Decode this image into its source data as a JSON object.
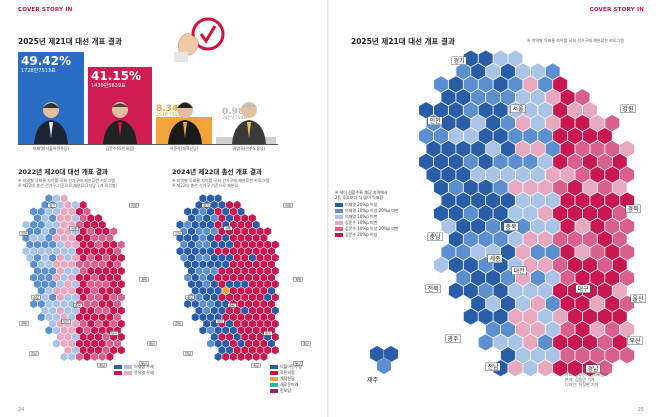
{
  "header": {
    "left": "COVER STORY IN",
    "right": "COVER STORY IN"
  },
  "result2025": {
    "title": "2025년 제21대 대선 개표 결과",
    "candidates": [
      {
        "pct": "49.42%",
        "votes": "1728만7513표",
        "caption": "이재명(더불어민주당)",
        "color": "#2a6cc4",
        "share": 49.42
      },
      {
        "pct": "41.15%",
        "votes": "1439만5639표",
        "caption": "김문수(국민의힘)",
        "color": "#cf1d52",
        "share": 41.15
      },
      {
        "pct": "8.34%",
        "votes": "291만7523표",
        "caption": "이준석(개혁신당)",
        "color": "#f2a33a",
        "share": 8.34
      },
      {
        "pct": "0.98%",
        "votes": "34만4150표",
        "caption": "권영국(민주노동당)",
        "color": "#c8c8c8",
        "share": 0.98
      }
    ]
  },
  "result2022": {
    "title": "2022년 제20대 대선 개표 결과",
    "notes": [
      "※ 지역별 득표율 차이를 국회 선거구에 재분류한 카토그램",
      "※ 제22대 총선 선거구 기준으로 재분류(1석당 1개 육각형)"
    ],
    "legend": [
      "이재명 우세",
      "윤석열 우세"
    ]
  },
  "result2024": {
    "title": "2024년 제22대 총선 개표 결과",
    "notes": [
      "※ 지역별 득표율 차이를 국회 선거구에 재분류한 카토그램",
      "※ 제22대 총선 선거구 기준으로 재분류"
    ],
    "legend": [
      "더불어민주당",
      "국민의힘",
      "개혁신당",
      "새로운미래",
      "진보당"
    ]
  },
  "map2025": {
    "title": "2025년 제21대 대선 개표 결과",
    "note": "※ 지역별 득표율 차이를 국회 선거구에 재분류한 카토그램",
    "legend_title": [
      "※ 색이 진할수록 해당 지역에서",
      "2등 후보보다 더 많이 득표함"
    ],
    "legend": [
      "이재명 20%p 이상",
      "이재명 10%p 이상 20%p 미만",
      "이재명 10%p 미만",
      "김문수 10%p 미만",
      "김문수 10%p 이상 20%p 미만",
      "김문수 20%p 이상"
    ],
    "source": [
      "자료: 중앙선거관리위원회",
      "분석: 김동민 기자",
      "디자인: 이정현 기자"
    ]
  },
  "regions": {
    "seoul": "서울",
    "gyeonggi": "경기",
    "incheon": "인천",
    "gangwon": "강원",
    "chungbuk": "충북",
    "chungnam": "충남",
    "sejong": "세종",
    "daejeon": "대전",
    "jeonbuk": "전북",
    "jeonnam": "전남",
    "gwangju": "광주",
    "gyeongbuk": "경북",
    "gyeongnam": "경남",
    "daegu": "대구",
    "busan": "부산",
    "ulsan": "울산",
    "jeju": "제주"
  },
  "pageno": {
    "left": "24",
    "right": "25"
  },
  "colors": {
    "blue_dark": "#2a5da8",
    "blue_mid": "#5b8fd0",
    "blue_light": "#a9c4e6",
    "pink_light": "#e8a8bf",
    "pink_mid": "#d9608d",
    "red_dark": "#c8184f",
    "orange": "#f2a33a",
    "accent": "#d0113b"
  }
}
